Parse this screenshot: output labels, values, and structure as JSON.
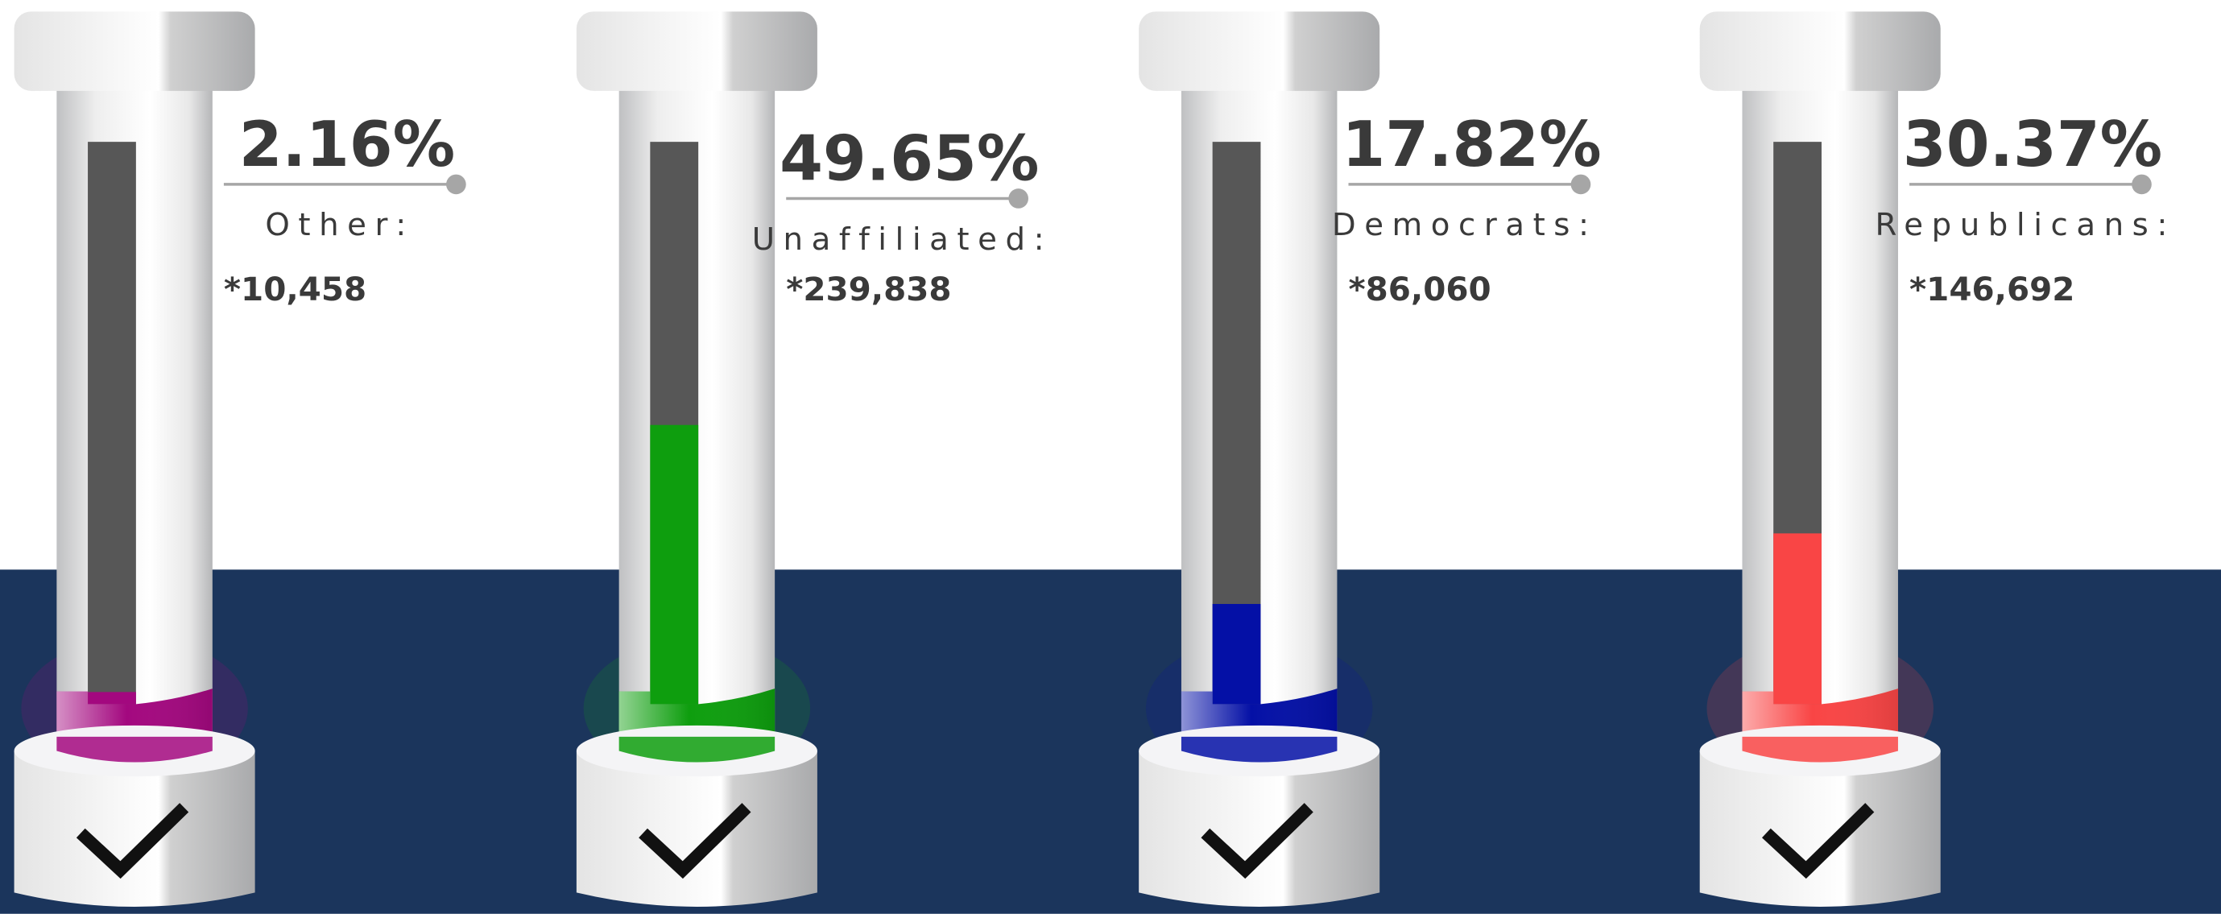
{
  "chart_data": {
    "type": "thermometer",
    "categories": [
      "Other:",
      "Unaffiliated:",
      "Democrats:",
      "Republicans:"
    ],
    "values": [
      2.16,
      49.65,
      17.82,
      30.37
    ],
    "value_labels": [
      "2.16%",
      "49.65%",
      "17.82%",
      "30.37%"
    ],
    "count_labels": [
      "*10,458",
      "*239,838",
      "*86,060",
      "*146,692"
    ],
    "colors": [
      "#a3087f",
      "#0e9e0e",
      "#0410a6",
      "#f94545"
    ],
    "ylim": [
      0,
      100
    ]
  }
}
